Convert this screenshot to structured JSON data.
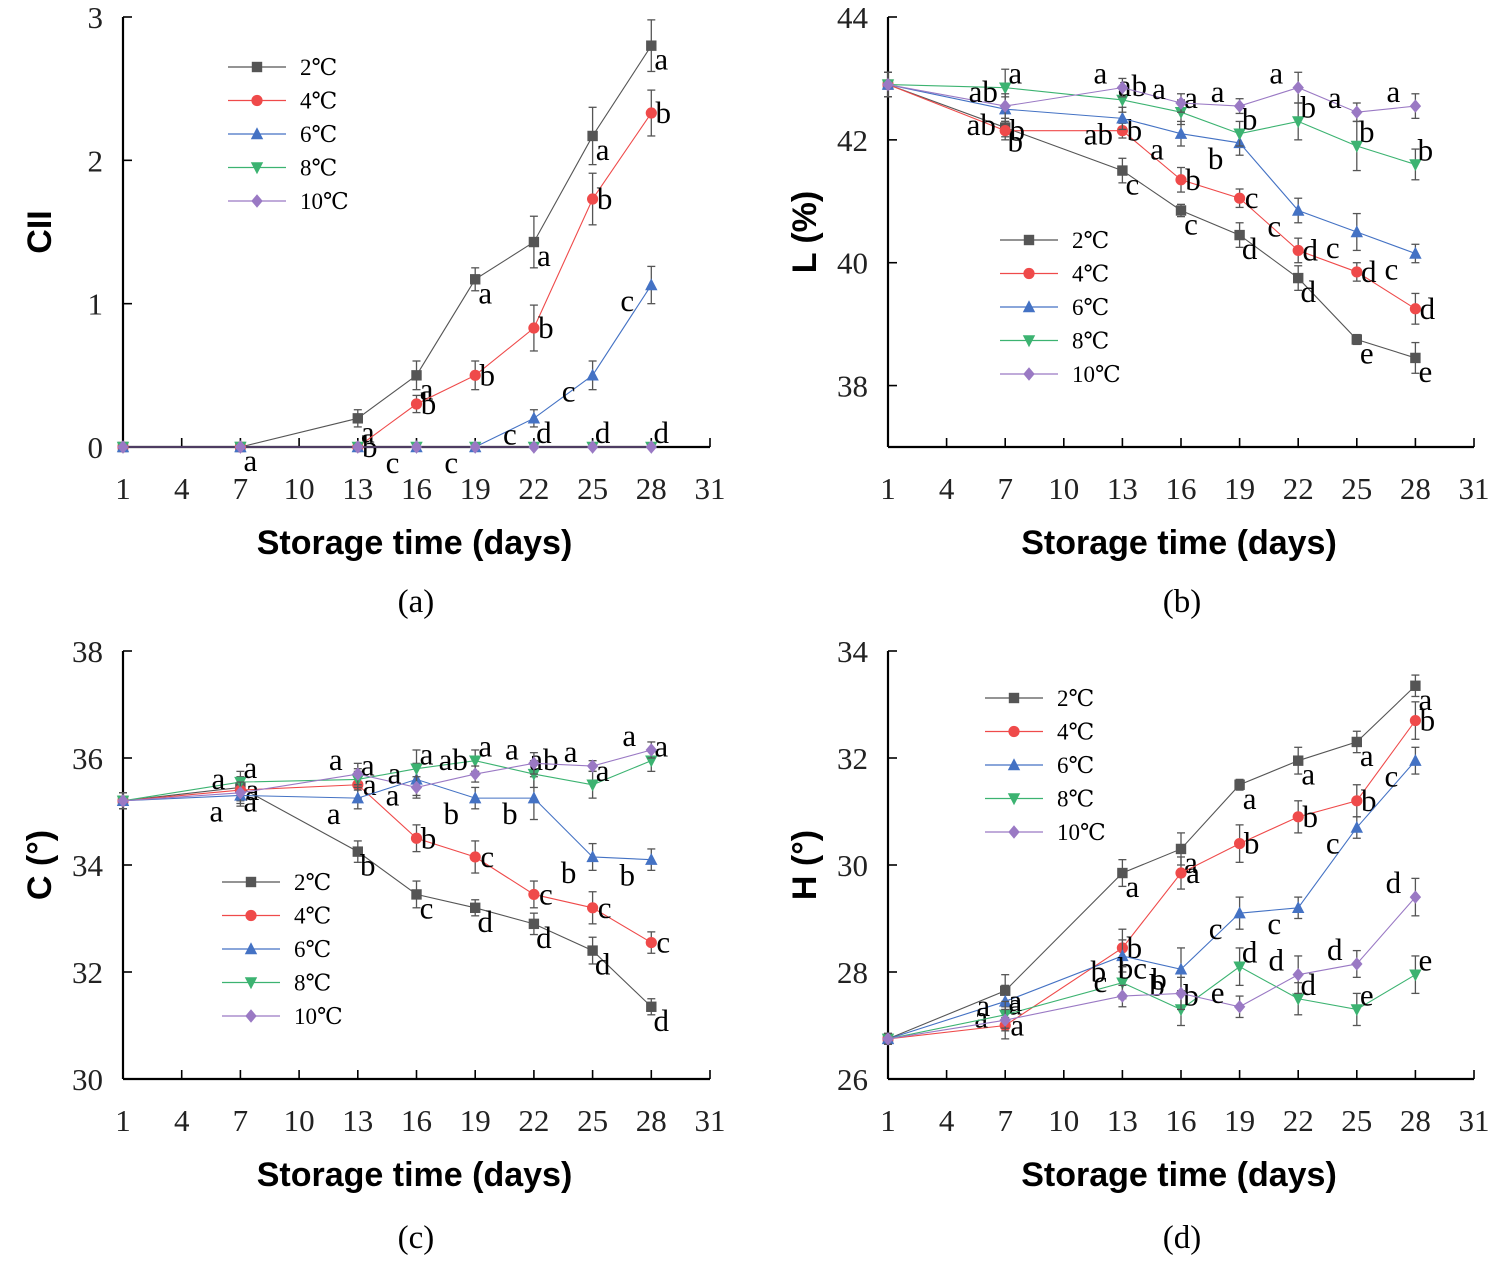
{
  "colors": {
    "2℃": "#555555",
    "4℃": "#ef4a4a",
    "6℃": "#4472c4",
    "8℃": "#3cb371",
    "10℃": "#9a79c4"
  },
  "chart_data": [
    {
      "type": "line",
      "panel_label": "(a)",
      "title": "",
      "xlabel": "Storage time (days)",
      "ylabel": "CII",
      "xlim": [
        1,
        31
      ],
      "ylim": [
        0,
        3
      ],
      "xticks": [
        1,
        4,
        7,
        10,
        13,
        16,
        19,
        22,
        25,
        28,
        31
      ],
      "yticks": [
        0,
        1,
        2,
        3
      ],
      "legend_position": "top-left",
      "series": [
        {
          "name": "2℃",
          "marker": "square",
          "x": [
            1,
            7,
            13,
            16,
            19,
            22,
            25,
            28
          ],
          "values": [
            0,
            0,
            0.2,
            0.5,
            1.17,
            1.43,
            2.17,
            2.8
          ],
          "errors": [
            0,
            0,
            0.06,
            0.1,
            0.08,
            0.18,
            0.2,
            0.18
          ],
          "letters": [
            "",
            "a",
            "a",
            "a",
            "a",
            "a",
            "a",
            "a"
          ]
        },
        {
          "name": "4℃",
          "marker": "circle",
          "x": [
            1,
            7,
            13,
            16,
            19,
            22,
            25,
            28
          ],
          "values": [
            0,
            0,
            0,
            0.3,
            0.5,
            0.83,
            1.73,
            2.33
          ],
          "errors": [
            0,
            0,
            0,
            0.06,
            0.1,
            0.16,
            0.18,
            0.16
          ],
          "letters": [
            "",
            "",
            "b",
            "b",
            "b",
            "b",
            "b",
            "b"
          ]
        },
        {
          "name": "6℃",
          "marker": "triangle-up",
          "x": [
            1,
            7,
            13,
            16,
            19,
            22,
            25,
            28
          ],
          "values": [
            0,
            0,
            0,
            0,
            0,
            0.2,
            0.5,
            1.13
          ],
          "errors": [
            0,
            0,
            0,
            0,
            0,
            0.06,
            0.1,
            0.13
          ],
          "letters": [
            "",
            "",
            "",
            "c",
            "c",
            "c",
            "c",
            "c"
          ]
        },
        {
          "name": "8℃",
          "marker": "triangle-down",
          "x": [
            1,
            7,
            13,
            16,
            19,
            22,
            25,
            28
          ],
          "values": [
            0,
            0,
            0,
            0,
            0,
            0,
            0,
            0
          ],
          "errors": [
            0,
            0,
            0,
            0,
            0,
            0,
            0,
            0
          ],
          "letters": [
            "",
            "",
            "",
            "",
            "",
            "d",
            "d",
            "d"
          ]
        },
        {
          "name": "10℃",
          "marker": "diamond",
          "x": [
            1,
            7,
            13,
            16,
            19,
            22,
            25,
            28
          ],
          "values": [
            0,
            0,
            0,
            0,
            0,
            0,
            0,
            0
          ],
          "errors": [
            0,
            0,
            0,
            0,
            0,
            0,
            0,
            0
          ],
          "letters": [
            "",
            "",
            "",
            "",
            "",
            "",
            "",
            ""
          ]
        }
      ]
    },
    {
      "type": "line",
      "panel_label": "(b)",
      "title": "",
      "xlabel": "Storage time (days)",
      "ylabel": "L (%)",
      "xlim": [
        1,
        31
      ],
      "ylim": [
        37,
        44
      ],
      "xticks": [
        1,
        4,
        7,
        10,
        13,
        16,
        19,
        22,
        25,
        28,
        31
      ],
      "yticks": [
        38,
        40,
        42,
        44
      ],
      "legend_position": "bottom-left",
      "series": [
        {
          "name": "2℃",
          "marker": "square",
          "x": [
            1,
            7,
            13,
            16,
            19,
            22,
            25,
            28
          ],
          "values": [
            42.9,
            42.2,
            41.5,
            40.85,
            40.45,
            39.75,
            38.75,
            38.45
          ],
          "errors": [
            0.2,
            0.15,
            0.2,
            0.1,
            0.2,
            0.2,
            0.08,
            0.25
          ],
          "letters": [
            "",
            "b",
            "c",
            "c",
            "d",
            "d",
            "e",
            "e"
          ]
        },
        {
          "name": "4℃",
          "marker": "circle",
          "x": [
            1,
            7,
            13,
            16,
            19,
            22,
            25,
            28
          ],
          "values": [
            42.9,
            42.15,
            42.15,
            41.35,
            41.05,
            40.2,
            39.85,
            39.25
          ],
          "errors": [
            0.2,
            0.15,
            0.12,
            0.2,
            0.15,
            0.2,
            0.15,
            0.25
          ],
          "letters": [
            "",
            "b",
            "b",
            "b",
            "c",
            "d",
            "d",
            "d"
          ]
        },
        {
          "name": "6℃",
          "marker": "triangle-up",
          "x": [
            1,
            7,
            13,
            16,
            19,
            22,
            25,
            28
          ],
          "values": [
            42.9,
            42.5,
            42.35,
            42.1,
            41.95,
            40.85,
            40.5,
            40.15
          ],
          "errors": [
            0.2,
            0.2,
            0.18,
            0.2,
            0.2,
            0.2,
            0.3,
            0.15
          ],
          "letters": [
            "",
            "ab",
            "ab",
            "a",
            "b",
            "c",
            "c",
            "c"
          ]
        },
        {
          "name": "8℃",
          "marker": "triangle-down",
          "x": [
            1,
            7,
            13,
            16,
            19,
            22,
            25,
            28
          ],
          "values": [
            42.9,
            42.85,
            42.65,
            42.45,
            42.1,
            42.3,
            41.9,
            41.6
          ],
          "errors": [
            0.2,
            0.3,
            0.2,
            0.2,
            0.2,
            0.3,
            0.4,
            0.25
          ],
          "letters": [
            "",
            "a",
            "ab",
            "a",
            "b",
            "b",
            "b",
            "b"
          ]
        },
        {
          "name": "10℃",
          "marker": "diamond",
          "x": [
            1,
            7,
            13,
            16,
            19,
            22,
            25,
            28
          ],
          "values": [
            42.9,
            42.55,
            42.85,
            42.6,
            42.55,
            42.85,
            42.45,
            42.55
          ],
          "errors": [
            0.2,
            0.2,
            0.15,
            0.15,
            0.12,
            0.25,
            0.15,
            0.2
          ],
          "letters": [
            "",
            "ab",
            "a",
            "a",
            "a",
            "a",
            "a",
            "a"
          ]
        }
      ]
    },
    {
      "type": "line",
      "panel_label": "(c)",
      "title": "",
      "xlabel": "Storage time (days)",
      "ylabel": "C (°)",
      "xlim": [
        1,
        31
      ],
      "ylim": [
        30,
        38
      ],
      "xticks": [
        1,
        4,
        7,
        10,
        13,
        16,
        19,
        22,
        25,
        28,
        31
      ],
      "yticks": [
        30,
        32,
        34,
        36,
        38
      ],
      "legend_position": "bottom-left",
      "series": [
        {
          "name": "2℃",
          "marker": "square",
          "x": [
            1,
            7,
            13,
            16,
            19,
            22,
            25,
            28
          ],
          "values": [
            35.2,
            35.45,
            34.25,
            33.45,
            33.2,
            32.9,
            32.4,
            31.35
          ],
          "errors": [
            0.15,
            0.2,
            0.2,
            0.25,
            0.15,
            0.2,
            0.25,
            0.15
          ],
          "letters": [
            "",
            "a",
            "b",
            "c",
            "d",
            "d",
            "d",
            "d"
          ]
        },
        {
          "name": "4℃",
          "marker": "circle",
          "x": [
            1,
            7,
            13,
            16,
            19,
            22,
            25,
            28
          ],
          "values": [
            35.2,
            35.4,
            35.5,
            34.5,
            34.15,
            33.45,
            33.2,
            32.55
          ],
          "errors": [
            0.15,
            0.2,
            0.25,
            0.25,
            0.3,
            0.25,
            0.3,
            0.2
          ],
          "letters": [
            "",
            "a",
            "a",
            "b",
            "c",
            "c",
            "c",
            "c"
          ]
        },
        {
          "name": "6℃",
          "marker": "triangle-up",
          "x": [
            1,
            7,
            13,
            16,
            19,
            22,
            25,
            28
          ],
          "values": [
            35.2,
            35.3,
            35.25,
            35.6,
            35.25,
            35.25,
            34.15,
            34.1
          ],
          "errors": [
            0.15,
            0.2,
            0.2,
            0.3,
            0.2,
            0.4,
            0.25,
            0.2
          ],
          "letters": [
            "",
            "a",
            "a",
            "a",
            "b",
            "b",
            "b",
            "b"
          ]
        },
        {
          "name": "8℃",
          "marker": "triangle-down",
          "x": [
            1,
            7,
            13,
            16,
            19,
            22,
            25,
            28
          ],
          "values": [
            35.2,
            35.55,
            35.6,
            35.8,
            35.95,
            35.7,
            35.5,
            35.95
          ],
          "errors": [
            0.15,
            0.2,
            0.2,
            0.35,
            0.2,
            0.25,
            0.25,
            0.2
          ],
          "letters": [
            "",
            "a",
            "a",
            "a",
            "a",
            "ab",
            "a",
            "a"
          ]
        },
        {
          "name": "10℃",
          "marker": "diamond",
          "x": [
            1,
            7,
            13,
            16,
            19,
            22,
            25,
            28
          ],
          "values": [
            35.2,
            35.35,
            35.7,
            35.45,
            35.7,
            35.9,
            35.85,
            36.15
          ],
          "errors": [
            0.15,
            0.2,
            0.2,
            0.2,
            0.15,
            0.2,
            0.1,
            0.15
          ],
          "letters": [
            "",
            "a",
            "a",
            "a",
            "ab",
            "a",
            "a",
            "a"
          ]
        }
      ]
    },
    {
      "type": "line",
      "panel_label": "(d)",
      "title": "",
      "xlabel": "Storage time (days)",
      "ylabel": "H (°)",
      "xlim": [
        1,
        31
      ],
      "ylim": [
        26,
        34
      ],
      "xticks": [
        1,
        4,
        7,
        10,
        13,
        16,
        19,
        22,
        25,
        28,
        31
      ],
      "yticks": [
        26,
        28,
        30,
        32,
        34
      ],
      "legend_position": "top-left",
      "series": [
        {
          "name": "2℃",
          "marker": "square",
          "x": [
            1,
            7,
            13,
            16,
            19,
            22,
            25,
            28
          ],
          "values": [
            26.75,
            27.65,
            29.85,
            30.3,
            31.5,
            31.95,
            32.3,
            33.35
          ],
          "errors": [
            0.1,
            0.3,
            0.25,
            0.3,
            0.1,
            0.25,
            0.2,
            0.2
          ],
          "letters": [
            "",
            "a",
            "a",
            "a",
            "a",
            "a",
            "a",
            "a"
          ]
        },
        {
          "name": "4℃",
          "marker": "circle",
          "x": [
            1,
            7,
            13,
            16,
            19,
            22,
            25,
            28
          ],
          "values": [
            26.75,
            27.0,
            28.45,
            29.85,
            30.4,
            30.9,
            31.2,
            32.7
          ],
          "errors": [
            0.1,
            0.25,
            0.35,
            0.3,
            0.35,
            0.3,
            0.3,
            0.35
          ],
          "letters": [
            "",
            "a",
            "b",
            "a",
            "b",
            "b",
            "b",
            "b"
          ]
        },
        {
          "name": "6℃",
          "marker": "triangle-up",
          "x": [
            1,
            7,
            13,
            16,
            19,
            22,
            25,
            28
          ],
          "values": [
            26.75,
            27.45,
            28.3,
            28.05,
            29.1,
            29.2,
            30.7,
            31.95
          ],
          "errors": [
            0.1,
            0.3,
            0.3,
            0.4,
            0.3,
            0.2,
            0.2,
            0.25
          ],
          "letters": [
            "",
            "a",
            "b",
            "b",
            "c",
            "c",
            "c",
            "c"
          ]
        },
        {
          "name": "8℃",
          "marker": "triangle-down",
          "x": [
            1,
            7,
            13,
            16,
            19,
            22,
            25,
            28
          ],
          "values": [
            26.75,
            27.2,
            27.8,
            27.3,
            28.1,
            27.5,
            27.3,
            27.95
          ],
          "errors": [
            0.1,
            0.25,
            0.3,
            0.3,
            0.35,
            0.3,
            0.3,
            0.35
          ],
          "letters": [
            "",
            "a",
            "bc",
            "b",
            "d",
            "d",
            "e",
            "e"
          ]
        },
        {
          "name": "10℃",
          "marker": "diamond",
          "x": [
            1,
            7,
            13,
            16,
            19,
            22,
            25,
            28
          ],
          "values": [
            26.75,
            27.1,
            27.55,
            27.6,
            27.35,
            27.95,
            28.15,
            29.4
          ],
          "errors": [
            0.1,
            0.2,
            0.2,
            0.3,
            0.2,
            0.35,
            0.25,
            0.35
          ],
          "letters": [
            "",
            "a",
            "c",
            "b",
            "e",
            "d",
            "d",
            "d"
          ]
        }
      ]
    }
  ]
}
